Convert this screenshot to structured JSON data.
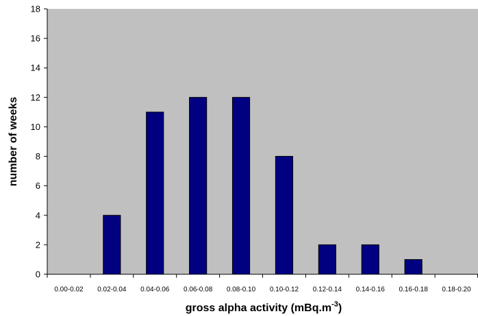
{
  "chart_data": {
    "type": "bar",
    "categories": [
      "0.00-0.02",
      "0.02-0.04",
      "0.04-0.06",
      "0.06-0.08",
      "0.08-0.10",
      "0.10-0.12",
      "0.12-0.14",
      "0.14-0.16",
      "0.16-0.18",
      "0.18-0.20"
    ],
    "values": [
      0,
      4,
      11,
      12,
      12,
      8,
      2,
      2,
      1,
      0
    ],
    "yticks": [
      "0",
      "2",
      "4",
      "6",
      "8",
      "10",
      "12",
      "14",
      "16",
      "18"
    ],
    "ylim": [
      0,
      18
    ],
    "ylabel": "number of weeks",
    "xlabel": "gross alpha activity (mBq.m",
    "xlabel_sup": "-3",
    "xlabel_suffix": ")",
    "grid": false,
    "colors": {
      "bar": "#000080",
      "plot_bg": "#c0c0c0",
      "axis": "#000000"
    }
  }
}
